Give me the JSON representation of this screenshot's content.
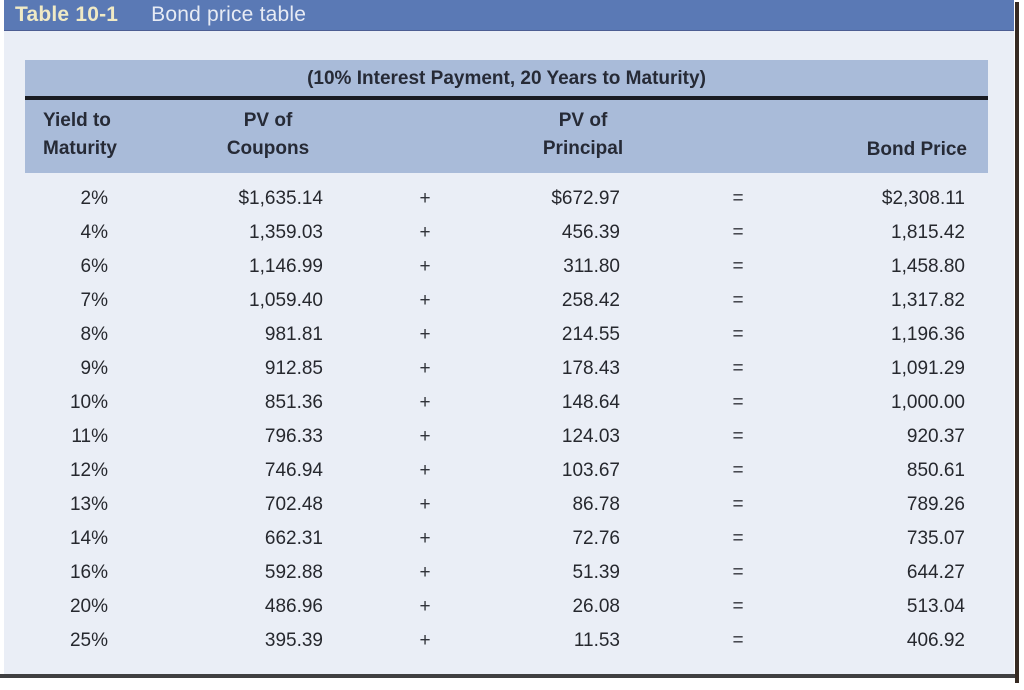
{
  "window": {
    "title_label": "Table 10-1",
    "title_text": "Bond price table"
  },
  "table": {
    "caption": "(10% Interest Payment, 20 Years to Maturity)",
    "columns": {
      "yield": {
        "line1": "Yield to",
        "line2": "Maturity"
      },
      "coupons": {
        "line1": "PV of",
        "line2": "Coupons"
      },
      "principal": {
        "line1": "PV of",
        "line2": "Principal"
      },
      "price": "Bond Price"
    },
    "rows": [
      {
        "yield": "2%",
        "coupons": "$1,635.14",
        "plus": "+",
        "principal": "$672.97",
        "equals": "=",
        "price": "$2,308.11"
      },
      {
        "yield": "4%",
        "coupons": "1,359.03",
        "plus": "+",
        "principal": "456.39",
        "equals": "=",
        "price": "1,815.42"
      },
      {
        "yield": "6%",
        "coupons": "1,146.99",
        "plus": "+",
        "principal": "311.80",
        "equals": "=",
        "price": "1,458.80"
      },
      {
        "yield": "7%",
        "coupons": "1,059.40",
        "plus": "+",
        "principal": "258.42",
        "equals": "=",
        "price": "1,317.82"
      },
      {
        "yield": "8%",
        "coupons": "981.81",
        "plus": "+",
        "principal": "214.55",
        "equals": "=",
        "price": "1,196.36"
      },
      {
        "yield": "9%",
        "coupons": "912.85",
        "plus": "+",
        "principal": "178.43",
        "equals": "=",
        "price": "1,091.29"
      },
      {
        "yield": "10%",
        "coupons": "851.36",
        "plus": "+",
        "principal": "148.64",
        "equals": "=",
        "price": "1,000.00"
      },
      {
        "yield": "11%",
        "coupons": "796.33",
        "plus": "+",
        "principal": "124.03",
        "equals": "=",
        "price": "920.37"
      },
      {
        "yield": "12%",
        "coupons": "746.94",
        "plus": "+",
        "principal": "103.67",
        "equals": "=",
        "price": "850.61"
      },
      {
        "yield": "13%",
        "coupons": "702.48",
        "plus": "+",
        "principal": "86.78",
        "equals": "=",
        "price": "789.26"
      },
      {
        "yield": "14%",
        "coupons": "662.31",
        "plus": "+",
        "principal": "72.76",
        "equals": "=",
        "price": "735.07"
      },
      {
        "yield": "16%",
        "coupons": "592.88",
        "plus": "+",
        "principal": "51.39",
        "equals": "=",
        "price": "644.27"
      },
      {
        "yield": "20%",
        "coupons": "486.96",
        "plus": "+",
        "principal": "26.08",
        "equals": "=",
        "price": "513.04"
      },
      {
        "yield": "25%",
        "coupons": "395.39",
        "plus": "+",
        "principal": "11.53",
        "equals": "=",
        "price": "406.92"
      }
    ]
  },
  "colors": {
    "title_bar": "#5a79b5",
    "title_label_text": "#f0eac5",
    "band": "#a9bbd9",
    "page_background": "#eaeef6",
    "rule": "#191b22",
    "body_text": "#26282e"
  }
}
